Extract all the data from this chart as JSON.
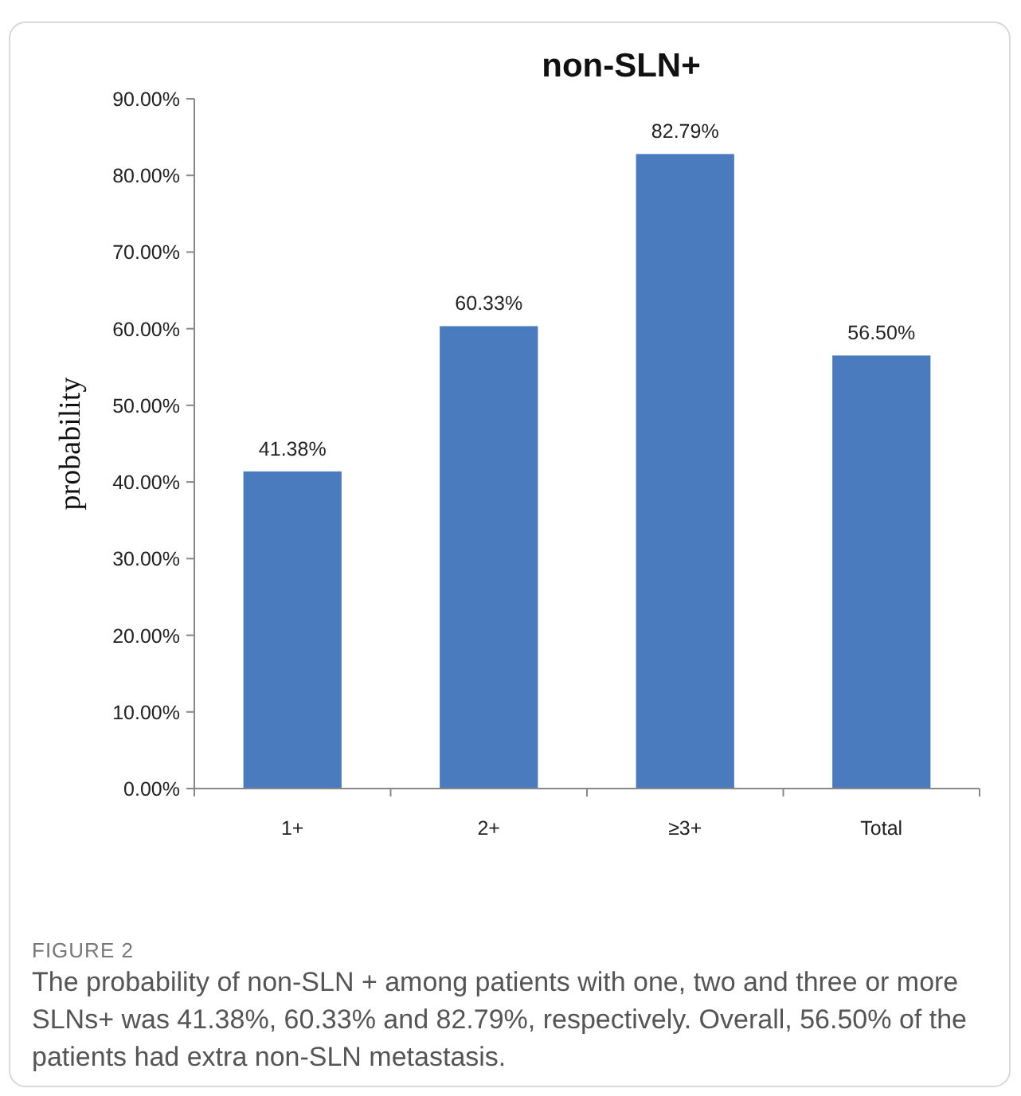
{
  "chart_data": {
    "type": "bar",
    "title": "non-SLN+",
    "ylabel": "probability",
    "categories": [
      "1+",
      "2+",
      "≥3+",
      "Total"
    ],
    "values": [
      41.38,
      60.33,
      82.79,
      56.5
    ],
    "value_labels": [
      "41.38%",
      "60.33%",
      "82.79%",
      "56.50%"
    ],
    "color": "#4a7bbf",
    "ylim": [
      0,
      90
    ],
    "yticks": [
      {
        "value": 0,
        "label": "0.00%"
      },
      {
        "value": 10,
        "label": "10.00%"
      },
      {
        "value": 20,
        "label": "20.00%"
      },
      {
        "value": 30,
        "label": "30.00%"
      },
      {
        "value": 40,
        "label": "40.00%"
      },
      {
        "value": 50,
        "label": "50.00%"
      },
      {
        "value": 60,
        "label": "60.00%"
      },
      {
        "value": 70,
        "label": "70.00%"
      },
      {
        "value": 80,
        "label": "80.00%"
      },
      {
        "value": 90,
        "label": "90.00%"
      }
    ],
    "grid": false,
    "annotations": [
      "FIGURE 2",
      "The probability of non-SLN + among patients with one, two and three or more SLNs+ was 41.38%, 60.33% and 82.79%, respectively. Overall, 56.50% of the patients had extra non-SLN metastasis."
    ]
  }
}
